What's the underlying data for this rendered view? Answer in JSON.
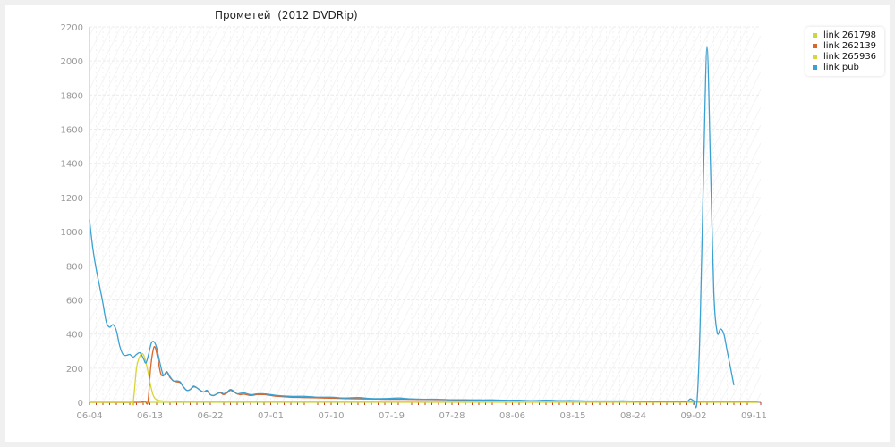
{
  "chart_data": {
    "type": "line",
    "title": "Прометей  (2012 DVDRip)",
    "xlabel": "",
    "ylabel": "",
    "ylim": [
      0,
      2200
    ],
    "yticks": [
      0,
      200,
      400,
      600,
      800,
      1000,
      1200,
      1400,
      1600,
      1800,
      2000,
      2200
    ],
    "xtick_labels": [
      "06-04",
      "06-13",
      "06-22",
      "07-01",
      "07-10",
      "07-19",
      "07-28",
      "08-06",
      "08-15",
      "08-24",
      "09-02",
      "09-11"
    ],
    "grid": true,
    "legend_position": "top-right",
    "series": [
      {
        "name": "link 261798",
        "color": "#c7d93d",
        "points": [
          [
            0,
            0
          ],
          [
            5,
            0
          ],
          [
            6,
            0
          ],
          [
            7,
            0
          ],
          [
            8,
            0
          ],
          [
            10,
            0
          ],
          [
            20,
            0
          ],
          [
            40,
            0
          ],
          [
            60,
            0
          ],
          [
            80,
            0
          ],
          [
            99.5,
            0
          ]
        ]
      },
      {
        "name": "link 262139",
        "color": "#d9662c",
        "points": [
          [
            0,
            0
          ],
          [
            7.3,
            0
          ],
          [
            7.8,
            5
          ],
          [
            8.3,
            5
          ],
          [
            8.7,
            3
          ],
          [
            9.1,
            200
          ],
          [
            9.5,
            310
          ],
          [
            9.8,
            320
          ],
          [
            10.2,
            250
          ],
          [
            10.6,
            170
          ],
          [
            11,
            155
          ],
          [
            11.5,
            175
          ],
          [
            12,
            145
          ],
          [
            12.5,
            125
          ],
          [
            13,
            120
          ],
          [
            13.5,
            115
          ],
          [
            14,
            90
          ],
          [
            14.5,
            70
          ],
          [
            15,
            75
          ],
          [
            15.5,
            90
          ],
          [
            16,
            85
          ],
          [
            16.5,
            70
          ],
          [
            17,
            60
          ],
          [
            17.5,
            65
          ],
          [
            18,
            45
          ],
          [
            18.5,
            40
          ],
          [
            19,
            50
          ],
          [
            19.5,
            55
          ],
          [
            20,
            45
          ],
          [
            20.5,
            55
          ],
          [
            21,
            70
          ],
          [
            21.5,
            60
          ],
          [
            22,
            50
          ],
          [
            22.5,
            45
          ],
          [
            23,
            48
          ],
          [
            24,
            40
          ],
          [
            25,
            45
          ],
          [
            26,
            45
          ],
          [
            27,
            40
          ],
          [
            28,
            35
          ],
          [
            30,
            30
          ],
          [
            32,
            28
          ],
          [
            35,
            25
          ],
          [
            38,
            22
          ],
          [
            41,
            20
          ],
          [
            44,
            18
          ],
          [
            47,
            18
          ],
          [
            50,
            16
          ],
          [
            53,
            15
          ],
          [
            56,
            13
          ],
          [
            59,
            12
          ],
          [
            62,
            10
          ],
          [
            65,
            9
          ],
          [
            68,
            8
          ],
          [
            71,
            7
          ],
          [
            74,
            7
          ],
          [
            77,
            6
          ],
          [
            80,
            6
          ],
          [
            85,
            5
          ],
          [
            90,
            4
          ],
          [
            95,
            3
          ],
          [
            99.5,
            2
          ]
        ]
      },
      {
        "name": "link 265936",
        "color": "#d7d634",
        "points": [
          [
            0,
            0
          ],
          [
            6,
            0
          ],
          [
            6.5,
            0
          ],
          [
            7,
            200
          ],
          [
            7.5,
            270
          ],
          [
            7.9,
            285
          ],
          [
            8.3,
            250
          ],
          [
            8.7,
            180
          ],
          [
            9.1,
            100
          ],
          [
            9.5,
            40
          ],
          [
            10,
            15
          ],
          [
            11,
            8
          ],
          [
            12,
            8
          ],
          [
            13,
            6
          ],
          [
            14,
            6
          ],
          [
            15,
            5
          ],
          [
            16,
            5
          ],
          [
            17,
            5
          ],
          [
            18,
            4
          ],
          [
            20,
            4
          ],
          [
            25,
            3
          ],
          [
            30,
            3
          ],
          [
            40,
            2
          ],
          [
            60,
            1
          ],
          [
            80,
            1
          ],
          [
            99.5,
            0
          ]
        ]
      },
      {
        "name": "link pub",
        "color": "#3aa1d2",
        "points": [
          [
            0,
            1070
          ],
          [
            0.5,
            900
          ],
          [
            1,
            780
          ],
          [
            1.5,
            680
          ],
          [
            2,
            580
          ],
          [
            2.5,
            470
          ],
          [
            3,
            440
          ],
          [
            3.5,
            455
          ],
          [
            4,
            420
          ],
          [
            4.5,
            330
          ],
          [
            5,
            280
          ],
          [
            5.5,
            275
          ],
          [
            6,
            280
          ],
          [
            6.5,
            265
          ],
          [
            7,
            280
          ],
          [
            7.5,
            290
          ],
          [
            8,
            260
          ],
          [
            8.4,
            230
          ],
          [
            8.8,
            280
          ],
          [
            9.2,
            345
          ],
          [
            9.6,
            355
          ],
          [
            10,
            320
          ],
          [
            10.5,
            230
          ],
          [
            11,
            160
          ],
          [
            11.5,
            180
          ],
          [
            12,
            150
          ],
          [
            12.5,
            125
          ],
          [
            13,
            125
          ],
          [
            13.5,
            120
          ],
          [
            14,
            90
          ],
          [
            14.5,
            70
          ],
          [
            15,
            75
          ],
          [
            15.5,
            95
          ],
          [
            16,
            85
          ],
          [
            16.5,
            70
          ],
          [
            17,
            60
          ],
          [
            17.5,
            70
          ],
          [
            18,
            45
          ],
          [
            18.5,
            40
          ],
          [
            19,
            50
          ],
          [
            19.5,
            60
          ],
          [
            20,
            50
          ],
          [
            20.5,
            60
          ],
          [
            21,
            75
          ],
          [
            21.5,
            65
          ],
          [
            22,
            50
          ],
          [
            23,
            55
          ],
          [
            24,
            45
          ],
          [
            25,
            50
          ],
          [
            26,
            50
          ],
          [
            27,
            45
          ],
          [
            28,
            40
          ],
          [
            30,
            35
          ],
          [
            32,
            35
          ],
          [
            34,
            30
          ],
          [
            36,
            30
          ],
          [
            38,
            25
          ],
          [
            40,
            28
          ],
          [
            42,
            22
          ],
          [
            44,
            22
          ],
          [
            46,
            25
          ],
          [
            48,
            20
          ],
          [
            50,
            18
          ],
          [
            52,
            18
          ],
          [
            54,
            15
          ],
          [
            56,
            15
          ],
          [
            58,
            14
          ],
          [
            60,
            14
          ],
          [
            62,
            12
          ],
          [
            64,
            12
          ],
          [
            66,
            10
          ],
          [
            68,
            12
          ],
          [
            70,
            10
          ],
          [
            72,
            10
          ],
          [
            74,
            8
          ],
          [
            76,
            8
          ],
          [
            78,
            8
          ],
          [
            80,
            8
          ],
          [
            82,
            6
          ],
          [
            84,
            5
          ],
          [
            86,
            5
          ],
          [
            88,
            5
          ],
          [
            89,
            5
          ],
          [
            89.5,
            20
          ],
          [
            90,
            10
          ],
          [
            90.5,
            5
          ],
          [
            91,
            500
          ],
          [
            91.5,
            1400
          ],
          [
            92,
            2080
          ],
          [
            92.5,
            1400
          ],
          [
            93,
            650
          ],
          [
            93.5,
            410
          ],
          [
            94,
            430
          ],
          [
            94.5,
            400
          ],
          [
            95,
            300
          ],
          [
            95.5,
            200
          ],
          [
            96,
            100
          ]
        ]
      }
    ]
  }
}
